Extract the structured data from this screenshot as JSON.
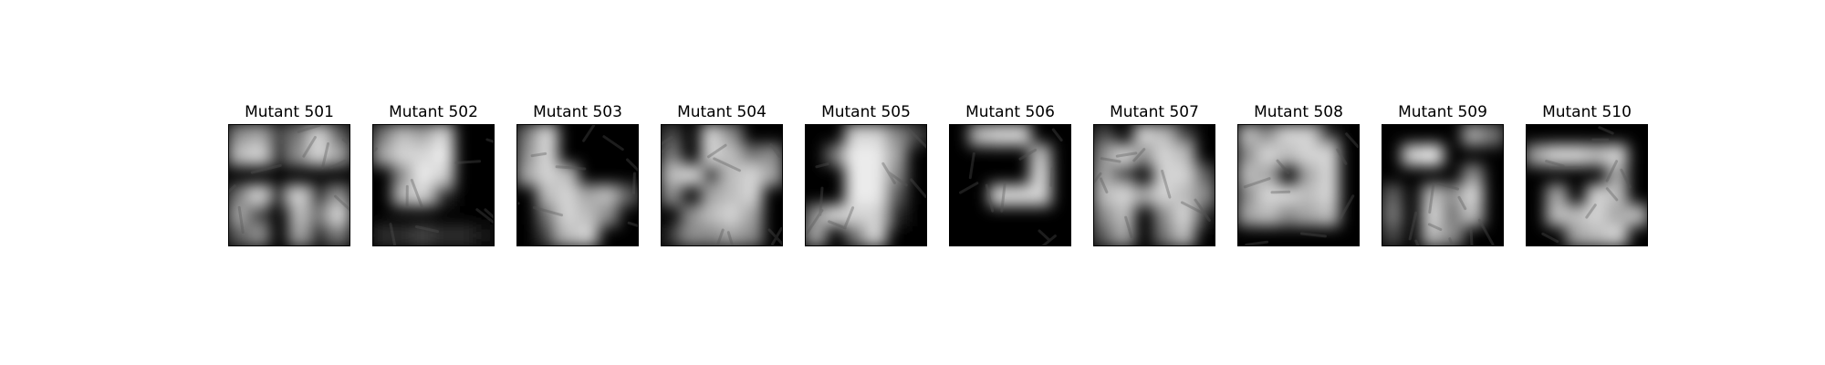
{
  "figure": {
    "panels": [
      {
        "title": "Mutant 501",
        "mask": [
          [
            0.6,
            0.7,
            0.3,
            0.5,
            0.9,
            0.4
          ],
          [
            0.8,
            0.9,
            0.2,
            0.6,
            0.9,
            0.7
          ],
          [
            0.0,
            0.0,
            0.0,
            0.0,
            0.0,
            0.0
          ],
          [
            0.5,
            0.9,
            0.1,
            0.9,
            0.2,
            0.6
          ],
          [
            0.7,
            0.3,
            0.0,
            0.8,
            0.5,
            0.9
          ],
          [
            0.4,
            0.6,
            0.0,
            0.7,
            0.2,
            0.5
          ]
        ]
      },
      {
        "title": "Mutant 502",
        "mask": [
          [
            0.5,
            0.8,
            0.7,
            0.9,
            0.0,
            0.0
          ],
          [
            0.7,
            0.9,
            0.9,
            1.0,
            0.0,
            0.0
          ],
          [
            0.0,
            0.6,
            1.0,
            0.9,
            0.0,
            0.0
          ],
          [
            0.0,
            0.8,
            0.9,
            0.2,
            0.0,
            0.0
          ],
          [
            0.0,
            0.0,
            0.0,
            0.0,
            0.0,
            0.0
          ],
          [
            0.2,
            0.2,
            0.3,
            0.2,
            0.2,
            0.1
          ]
        ]
      },
      {
        "title": "Mutant 503",
        "mask": [
          [
            0.5,
            0.9,
            0.0,
            0.0,
            0.0,
            0.0
          ],
          [
            0.6,
            0.9,
            0.0,
            0.0,
            0.0,
            0.0
          ],
          [
            0.7,
            0.9,
            0.8,
            0.0,
            0.0,
            0.0
          ],
          [
            0.0,
            0.8,
            0.9,
            0.7,
            0.8,
            0.4
          ],
          [
            0.0,
            0.5,
            0.9,
            0.8,
            0.6,
            0.0
          ],
          [
            0.0,
            0.3,
            0.8,
            0.9,
            0.0,
            0.0
          ]
        ]
      },
      {
        "title": "Mutant 504",
        "mask": [
          [
            0.3,
            0.0,
            0.9,
            0.6,
            0.0,
            0.0
          ],
          [
            0.5,
            0.0,
            0.9,
            0.8,
            0.5,
            0.6
          ],
          [
            0.8,
            0.9,
            0.2,
            0.8,
            0.9,
            0.7
          ],
          [
            0.6,
            0.0,
            0.7,
            0.8,
            0.9,
            0.0
          ],
          [
            0.0,
            0.6,
            0.8,
            0.9,
            0.7,
            0.0
          ],
          [
            0.2,
            0.6,
            0.6,
            0.7,
            0.6,
            0.0
          ]
        ]
      },
      {
        "title": "Mutant 505",
        "mask": [
          [
            0.0,
            0.0,
            0.9,
            0.9,
            0.6,
            0.3
          ],
          [
            0.0,
            0.5,
            1.0,
            1.0,
            0.7,
            0.0
          ],
          [
            0.0,
            0.0,
            1.0,
            1.0,
            0.6,
            0.0
          ],
          [
            0.0,
            0.0,
            1.0,
            1.0,
            0.4,
            0.0
          ],
          [
            0.6,
            0.9,
            0.9,
            0.9,
            0.2,
            0.0
          ],
          [
            0.7,
            0.0,
            0.5,
            0.9,
            0.0,
            0.0
          ]
        ]
      },
      {
        "title": "Mutant 506",
        "mask": [
          [
            0.0,
            0.8,
            0.9,
            0.9,
            0.0,
            0.0
          ],
          [
            0.0,
            0.0,
            0.0,
            0.0,
            0.8,
            0.0
          ],
          [
            0.0,
            0.0,
            0.0,
            0.0,
            0.9,
            0.0
          ],
          [
            0.0,
            0.0,
            0.9,
            0.9,
            0.9,
            0.0
          ],
          [
            0.0,
            0.0,
            0.0,
            0.0,
            0.0,
            0.0
          ],
          [
            0.0,
            0.0,
            0.0,
            0.0,
            0.0,
            0.0
          ]
        ]
      },
      {
        "title": "Mutant 507",
        "mask": [
          [
            0.3,
            0.0,
            0.9,
            0.8,
            0.3,
            0.0
          ],
          [
            0.6,
            0.9,
            0.6,
            0.9,
            0.8,
            0.0
          ],
          [
            0.7,
            0.3,
            0.0,
            0.9,
            0.9,
            0.4
          ],
          [
            0.8,
            0.9,
            0.7,
            0.9,
            0.8,
            0.6
          ],
          [
            0.6,
            0.8,
            0.0,
            0.6,
            0.9,
            0.2
          ],
          [
            0.4,
            0.7,
            0.0,
            0.5,
            0.8,
            0.0
          ]
        ]
      },
      {
        "title": "Mutant 508",
        "mask": [
          [
            0.8,
            0.6,
            0.9,
            0.9,
            0.2,
            0.0
          ],
          [
            0.6,
            0.9,
            0.8,
            0.9,
            0.9,
            0.0
          ],
          [
            0.8,
            0.7,
            0.0,
            0.7,
            0.9,
            0.0
          ],
          [
            0.6,
            0.9,
            0.9,
            0.8,
            0.9,
            0.0
          ],
          [
            0.7,
            0.8,
            0.6,
            0.7,
            0.8,
            0.0
          ],
          [
            0.0,
            0.0,
            0.0,
            0.0,
            0.0,
            0.0
          ]
        ]
      },
      {
        "title": "Mutant 509",
        "mask": [
          [
            0.0,
            0.0,
            0.0,
            0.0,
            0.7,
            0.5
          ],
          [
            0.0,
            0.9,
            1.0,
            0.0,
            0.0,
            0.0
          ],
          [
            0.0,
            0.0,
            0.0,
            0.0,
            0.6,
            0.0
          ],
          [
            0.4,
            0.0,
            0.8,
            0.6,
            0.9,
            0.0
          ],
          [
            0.5,
            0.0,
            0.9,
            0.5,
            0.8,
            0.0
          ],
          [
            0.3,
            0.0,
            0.8,
            0.6,
            0.0,
            0.0
          ]
        ]
      },
      {
        "title": "Mutant 510",
        "mask": [
          [
            0.0,
            0.0,
            0.0,
            0.0,
            0.0,
            0.0
          ],
          [
            0.7,
            0.9,
            0.9,
            0.8,
            0.9,
            0.0
          ],
          [
            0.0,
            0.0,
            0.0,
            0.0,
            0.7,
            0.0
          ],
          [
            0.0,
            0.7,
            0.0,
            0.9,
            0.8,
            0.0
          ],
          [
            0.0,
            0.8,
            0.8,
            0.9,
            0.7,
            0.8
          ],
          [
            0.0,
            0.0,
            0.7,
            0.8,
            0.9,
            0.0
          ]
        ]
      }
    ]
  }
}
